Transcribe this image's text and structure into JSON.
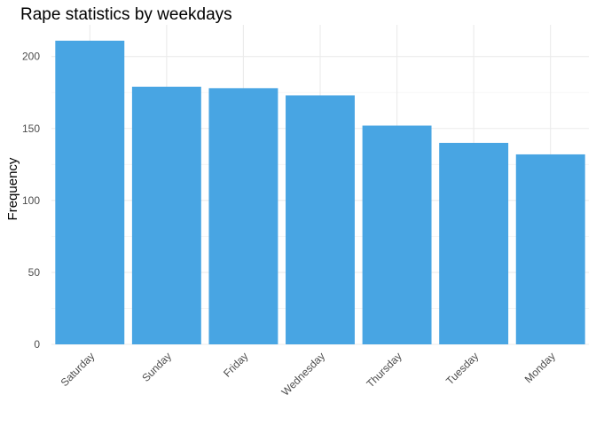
{
  "chart_data": {
    "type": "bar",
    "title": "Rape statistics by weekdays",
    "xlabel": "",
    "ylabel": "Frequency",
    "categories": [
      "Saturday",
      "Sunday",
      "Friday",
      "Wednesday",
      "Thursday",
      "Tuesday",
      "Monday"
    ],
    "values": [
      211,
      179,
      178,
      173,
      152,
      140,
      132
    ],
    "ylim": [
      0,
      222
    ],
    "yticks": [
      0,
      50,
      100,
      150,
      200
    ],
    "yminor": [
      25,
      75,
      125,
      175
    ],
    "bar_color": "#48A5E3",
    "grid": true,
    "legend": "none"
  }
}
